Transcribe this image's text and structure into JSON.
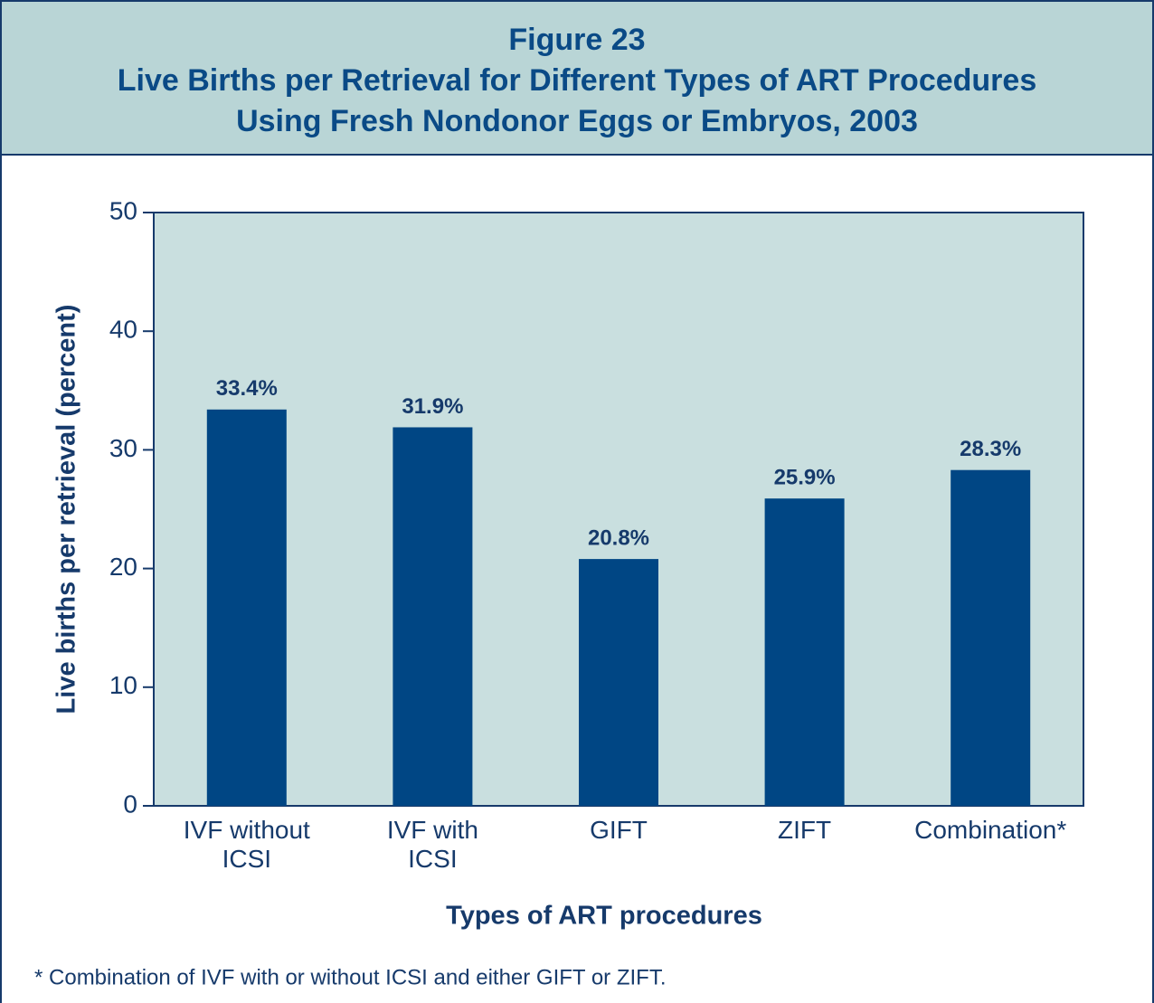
{
  "chart_data": {
    "type": "bar",
    "title": [
      "Figure 23",
      "Live Births per Retrieval for Different Types of ART Procedures",
      "Using Fresh Nondonor Eggs or Embryos, 2003"
    ],
    "categories": [
      [
        "IVF without",
        "ICSI"
      ],
      [
        "IVF with",
        "ICSI"
      ],
      [
        "GIFT"
      ],
      [
        "ZIFT"
      ],
      [
        "Combination*"
      ]
    ],
    "values": [
      33.4,
      31.9,
      20.8,
      25.9,
      28.3
    ],
    "value_labels": [
      "33.4%",
      "31.9%",
      "20.8%",
      "25.9%",
      "28.3%"
    ],
    "color": "#004684",
    "ylim": [
      0,
      50
    ],
    "yticks": [
      0,
      10,
      20,
      30,
      40,
      50
    ],
    "y_label": "Live births per retrieval (percent)",
    "x_label": "Types of ART procedures",
    "footnote": "* Combination of IVF with or without ICSI and either GIFT or ZIFT."
  }
}
